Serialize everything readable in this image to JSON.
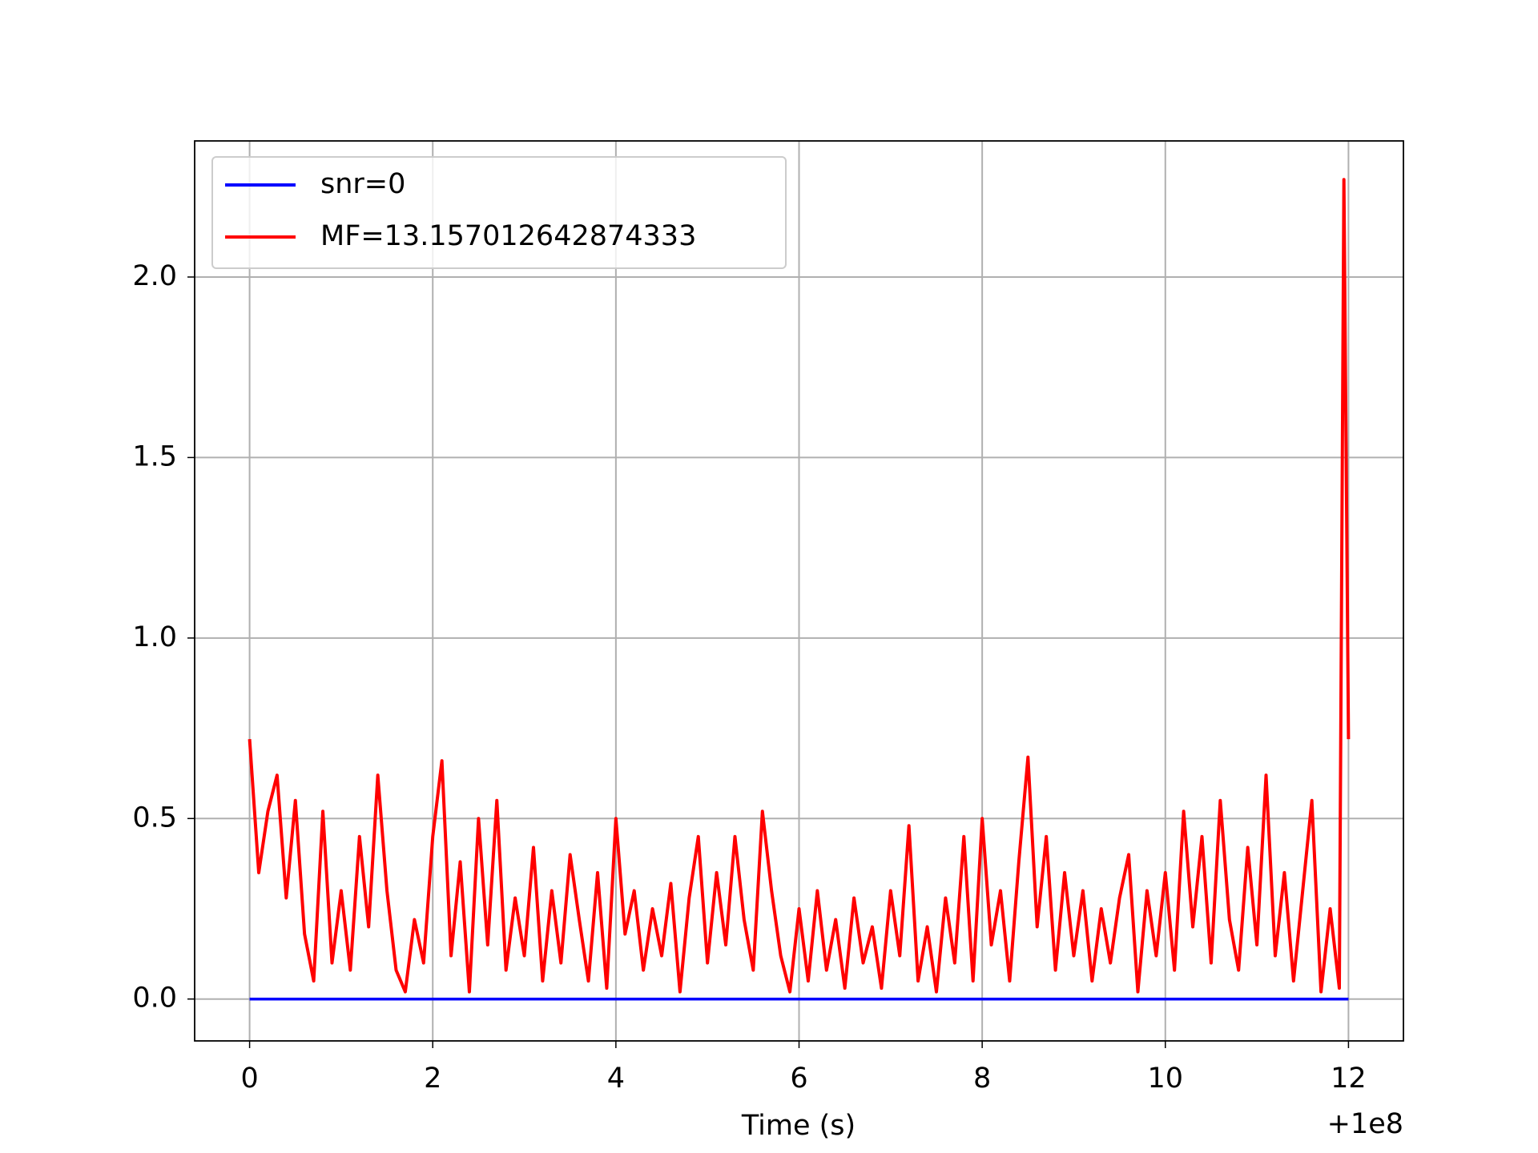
{
  "chart_data": {
    "type": "line",
    "xlabel": "Time (s)",
    "x_offset_label": "+1e8",
    "xlim": [
      -0.6,
      12.6
    ],
    "xticks": [
      0,
      2,
      4,
      6,
      8,
      10,
      12
    ],
    "ylim": [
      -0.116,
      2.377
    ],
    "yticks": [
      {
        "value": 0,
        "label": "0.0"
      },
      {
        "value": 0.5,
        "label": "0.5"
      },
      {
        "value": 1,
        "label": "1.0"
      },
      {
        "value": 1.5,
        "label": "1.5"
      },
      {
        "value": 2,
        "label": "2.0"
      }
    ],
    "grid": true,
    "legend": "upper left",
    "series": [
      {
        "name": "snr=0",
        "color": "#0000ff",
        "x": [
          0,
          12
        ],
        "values": [
          0,
          0
        ]
      },
      {
        "name": "MF=13.157012642874333",
        "color": "#ff0000",
        "x": [
          0,
          0.1,
          0.2,
          0.3,
          0.4,
          0.5,
          0.6,
          0.7,
          0.8,
          0.9,
          1,
          1.1,
          1.2,
          1.3,
          1.4,
          1.5,
          1.6,
          1.7,
          1.8,
          1.9,
          2,
          2.1,
          2.2,
          2.3,
          2.4,
          2.5,
          2.6,
          2.7,
          2.8,
          2.9,
          3,
          3.1,
          3.2,
          3.3,
          3.4,
          3.5,
          3.6,
          3.7,
          3.8,
          3.9,
          4,
          4.1,
          4.2,
          4.3,
          4.4,
          4.5,
          4.6,
          4.7,
          4.8,
          4.9,
          5,
          5.1,
          5.2,
          5.3,
          5.4,
          5.5,
          5.6,
          5.7,
          5.8,
          5.9,
          6,
          6.1,
          6.2,
          6.3,
          6.4,
          6.5,
          6.6,
          6.7,
          6.8,
          6.9,
          7,
          7.1,
          7.2,
          7.3,
          7.4,
          7.5,
          7.6,
          7.7,
          7.8,
          7.9,
          8,
          8.1,
          8.2,
          8.3,
          8.4,
          8.5,
          8.6,
          8.7,
          8.8,
          8.9,
          9,
          9.1,
          9.2,
          9.3,
          9.4,
          9.5,
          9.6,
          9.7,
          9.8,
          9.9,
          10,
          10.1,
          10.2,
          10.3,
          10.4,
          10.5,
          10.6,
          10.7,
          10.8,
          10.9,
          11,
          11.1,
          11.2,
          11.3,
          11.4,
          11.5,
          11.6,
          11.7,
          11.8,
          11.9,
          11.95,
          12
        ],
        "values": [
          0.72,
          0.35,
          0.52,
          0.62,
          0.28,
          0.55,
          0.18,
          0.05,
          0.52,
          0.1,
          0.3,
          0.08,
          0.45,
          0.2,
          0.62,
          0.3,
          0.08,
          0.02,
          0.22,
          0.1,
          0.45,
          0.66,
          0.12,
          0.38,
          0.02,
          0.5,
          0.15,
          0.55,
          0.08,
          0.28,
          0.12,
          0.42,
          0.05,
          0.3,
          0.1,
          0.4,
          0.22,
          0.05,
          0.35,
          0.03,
          0.5,
          0.18,
          0.3,
          0.08,
          0.25,
          0.12,
          0.32,
          0.02,
          0.28,
          0.45,
          0.1,
          0.35,
          0.15,
          0.45,
          0.22,
          0.08,
          0.52,
          0.3,
          0.12,
          0.02,
          0.25,
          0.05,
          0.3,
          0.08,
          0.22,
          0.03,
          0.28,
          0.1,
          0.2,
          0.03,
          0.3,
          0.12,
          0.48,
          0.05,
          0.2,
          0.02,
          0.28,
          0.1,
          0.45,
          0.05,
          0.5,
          0.15,
          0.3,
          0.05,
          0.38,
          0.67,
          0.2,
          0.45,
          0.08,
          0.35,
          0.12,
          0.3,
          0.05,
          0.25,
          0.1,
          0.28,
          0.4,
          0.02,
          0.3,
          0.12,
          0.35,
          0.08,
          0.52,
          0.2,
          0.45,
          0.1,
          0.55,
          0.22,
          0.08,
          0.42,
          0.15,
          0.62,
          0.12,
          0.35,
          0.05,
          0.3,
          0.55,
          0.02,
          0.25,
          0.03,
          2.27,
          0.72
        ]
      }
    ]
  }
}
